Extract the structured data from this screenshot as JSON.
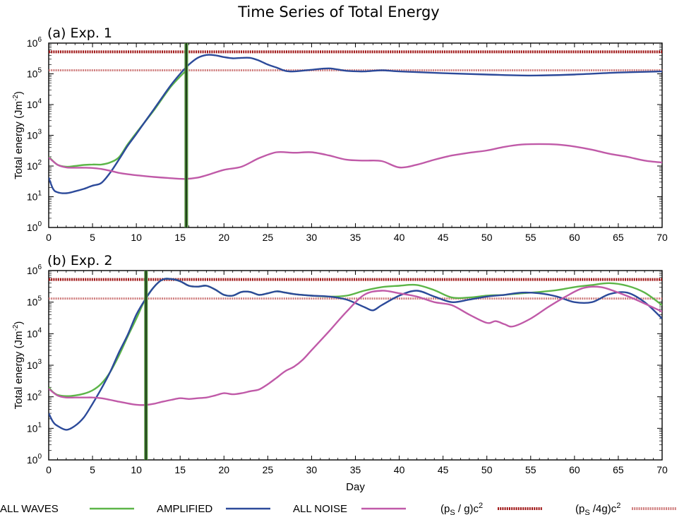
{
  "chart_data": {
    "title": "Time Series of Total Energy",
    "legend": {
      "placement": "bottom",
      "entries": [
        {
          "label": "ALL WAVES",
          "color": "#5cb548",
          "style": "solid"
        },
        {
          "label": "AMPLIFIED",
          "color": "#2c4a9a",
          "style": "solid"
        },
        {
          "label": "ALL NOISE",
          "color": "#c05aa8",
          "style": "solid"
        },
        {
          "label_main": "(p",
          "label_sub": "S",
          "label_mid": " / g)c",
          "label_sup": "2",
          "color": "#a01818",
          "style": "dotted"
        },
        {
          "label_main": "(p",
          "label_sub": "S",
          "label_mid": " /4g)c",
          "label_sup": "2",
          "color": "#d08080",
          "style": "dotted"
        }
      ]
    },
    "panels": [
      {
        "type": "line",
        "label": "(a) Exp. 1",
        "xlabel": "",
        "ylabel": "Total energy (Jm",
        "ylabel_sup": "-2",
        "ylabel_end": ")",
        "xlim": [
          0,
          70
        ],
        "ylim_log10": [
          0,
          6
        ],
        "yscale": "log",
        "xticks": [
          0,
          5,
          10,
          15,
          20,
          25,
          30,
          35,
          40,
          45,
          50,
          55,
          60,
          65,
          70
        ],
        "yticks_exp": [
          0,
          1,
          2,
          3,
          4,
          5,
          6
        ],
        "ytick_base": "10",
        "vline_x": 15.7,
        "hlines": [
          {
            "name": "(ps / g)c2",
            "value": 520000,
            "color": "#a01818"
          },
          {
            "name": "(ps /4g)c2",
            "value": 130000,
            "color": "#d08080"
          }
        ],
        "series": [
          {
            "name": "ALL WAVES",
            "color": "#5cb548",
            "x": [
              0,
              1,
              2,
              3,
              4,
              5,
              6,
              7,
              8,
              9,
              10,
              12,
              14,
              15.7
            ],
            "y": [
              200,
              110,
              95,
              100,
              108,
              112,
              112,
              130,
              190,
              500,
              1200,
              6500,
              40000,
              130000
            ]
          },
          {
            "name": "AMPLIFIED",
            "color": "#2c4a9a",
            "x": [
              0,
              0.5,
              1,
              2,
              3,
              4,
              5,
              6,
              7,
              8,
              9,
              10,
              11,
              12,
              13,
              14,
              15,
              16,
              17,
              18,
              19,
              20,
              21,
              22,
              23,
              24,
              25,
              26,
              27,
              28,
              30,
              32,
              34,
              36,
              38,
              40,
              45,
              50,
              55,
              60,
              65,
              70
            ],
            "y": [
              42,
              18,
              14,
              13,
              15,
              18,
              23,
              28,
              60,
              160,
              450,
              1100,
              2800,
              7000,
              18000,
              45000,
              100000,
              200000,
              330000,
              410000,
              400000,
              350000,
              320000,
              330000,
              330000,
              270000,
              200000,
              160000,
              125000,
              120000,
              135000,
              150000,
              125000,
              120000,
              130000,
              120000,
              105000,
              95000,
              88000,
              95000,
              110000,
              120000
            ]
          },
          {
            "name": "ALL NOISE",
            "color": "#c05aa8",
            "x": [
              0,
              1,
              2,
              3,
              4,
              5,
              6,
              7,
              8,
              9,
              10,
              12,
              14,
              15.5,
              17,
              18,
              20,
              22,
              24,
              26,
              28,
              30,
              32,
              34,
              36,
              38,
              40,
              42,
              44,
              46,
              48,
              50,
              52,
              54,
              56,
              58,
              60,
              62,
              64,
              66,
              68,
              70
            ],
            "y": [
              190,
              110,
              90,
              88,
              88,
              86,
              80,
              70,
              60,
              54,
              50,
              44,
              40,
              38,
              42,
              50,
              75,
              95,
              180,
              280,
              270,
              280,
              220,
              160,
              150,
              145,
              90,
              110,
              160,
              220,
              270,
              320,
              420,
              500,
              520,
              500,
              430,
              340,
              250,
              200,
              150,
              130
            ]
          }
        ]
      },
      {
        "type": "line",
        "label": "(b) Exp. 2",
        "xlabel": "Day",
        "ylabel": "Total energy (Jm",
        "ylabel_sup": "-2",
        "ylabel_end": ")",
        "xlim": [
          0,
          70
        ],
        "ylim_log10": [
          0,
          6
        ],
        "yscale": "log",
        "xticks": [
          0,
          5,
          10,
          15,
          20,
          25,
          30,
          35,
          40,
          45,
          50,
          55,
          60,
          65,
          70
        ],
        "yticks_exp": [
          0,
          1,
          2,
          3,
          4,
          5,
          6
        ],
        "ytick_base": "10",
        "vline_x": 11.1,
        "hlines": [
          {
            "name": "(ps / g)c2",
            "value": 520000,
            "color": "#a01818"
          },
          {
            "name": "(ps /4g)c2",
            "value": 130000,
            "color": "#d08080"
          }
        ],
        "series": [
          {
            "name": "ALL WAVES",
            "color": "#5cb548",
            "x": [
              0,
              0.5,
              1,
              2,
              3,
              4,
              5,
              6,
              7,
              8,
              9,
              10,
              11,
              12,
              13,
              14,
              15,
              16,
              17,
              18,
              19,
              20,
              21,
              22,
              23,
              24,
              25,
              26,
              27,
              28,
              30,
              32,
              34,
              36,
              38,
              40,
              42,
              44,
              46,
              48,
              50,
              52,
              54,
              56,
              58,
              60,
              62,
              64,
              66,
              68,
              70
            ],
            "y": [
              200,
              140,
              115,
              105,
              110,
              125,
              160,
              260,
              600,
              2000,
              8000,
              30000,
              120000,
              300000,
              520000,
              540000,
              460000,
              330000,
              310000,
              330000,
              250000,
              170000,
              160000,
              210000,
              210000,
              170000,
              190000,
              220000,
              200000,
              180000,
              160000,
              150000,
              160000,
              230000,
              300000,
              330000,
              350000,
              240000,
              140000,
              140000,
              160000,
              170000,
              190000,
              210000,
              240000,
              300000,
              350000,
              400000,
              330000,
              200000,
              80000
            ]
          },
          {
            "name": "AMPLIFIED",
            "color": "#2c4a9a",
            "x": [
              0,
              0.5,
              1,
              2,
              3,
              4,
              5,
              6,
              7,
              8,
              9,
              10,
              11,
              12,
              13,
              14,
              15,
              16,
              17,
              18,
              19,
              20,
              21,
              22,
              23,
              24,
              25,
              26,
              27,
              28,
              30,
              32,
              34,
              36,
              37,
              38,
              40,
              42,
              44,
              46,
              48,
              50,
              52,
              54,
              56,
              58,
              60,
              62,
              64,
              66,
              68,
              70
            ],
            "y": [
              30,
              16,
              12,
              9,
              12,
              22,
              60,
              180,
              600,
              2500,
              9000,
              40000,
              120000,
              300000,
              520000,
              540000,
              460000,
              330000,
              310000,
              330000,
              250000,
              170000,
              160000,
              210000,
              210000,
              170000,
              190000,
              220000,
              200000,
              180000,
              160000,
              150000,
              120000,
              70000,
              55000,
              80000,
              160000,
              230000,
              150000,
              100000,
              120000,
              150000,
              170000,
              200000,
              190000,
              150000,
              100000,
              100000,
              180000,
              200000,
              100000,
              30000
            ]
          },
          {
            "name": "ALL NOISE",
            "color": "#c05aa8",
            "x": [
              0,
              1,
              2,
              3,
              4,
              5,
              6,
              7,
              8,
              9,
              10,
              11,
              12,
              13,
              14,
              15,
              16,
              17,
              18,
              19,
              20,
              21,
              22,
              23,
              24,
              25,
              26,
              27,
              28,
              29,
              30,
              32,
              34,
              36,
              38,
              40,
              42,
              44,
              46,
              48,
              50,
              51,
              52,
              53,
              55,
              57,
              59,
              61,
              63,
              65,
              67,
              70
            ],
            "y": [
              180,
              110,
              95,
              95,
              95,
              95,
              90,
              80,
              70,
              62,
              56,
              55,
              60,
              70,
              80,
              90,
              85,
              90,
              95,
              110,
              130,
              120,
              130,
              150,
              170,
              250,
              400,
              650,
              900,
              1500,
              3000,
              12000,
              50000,
              170000,
              230000,
              190000,
              150000,
              100000,
              80000,
              40000,
              22000,
              25000,
              20000,
              17000,
              30000,
              70000,
              150000,
              280000,
              300000,
              200000,
              120000,
              50000
            ]
          }
        ]
      }
    ]
  }
}
